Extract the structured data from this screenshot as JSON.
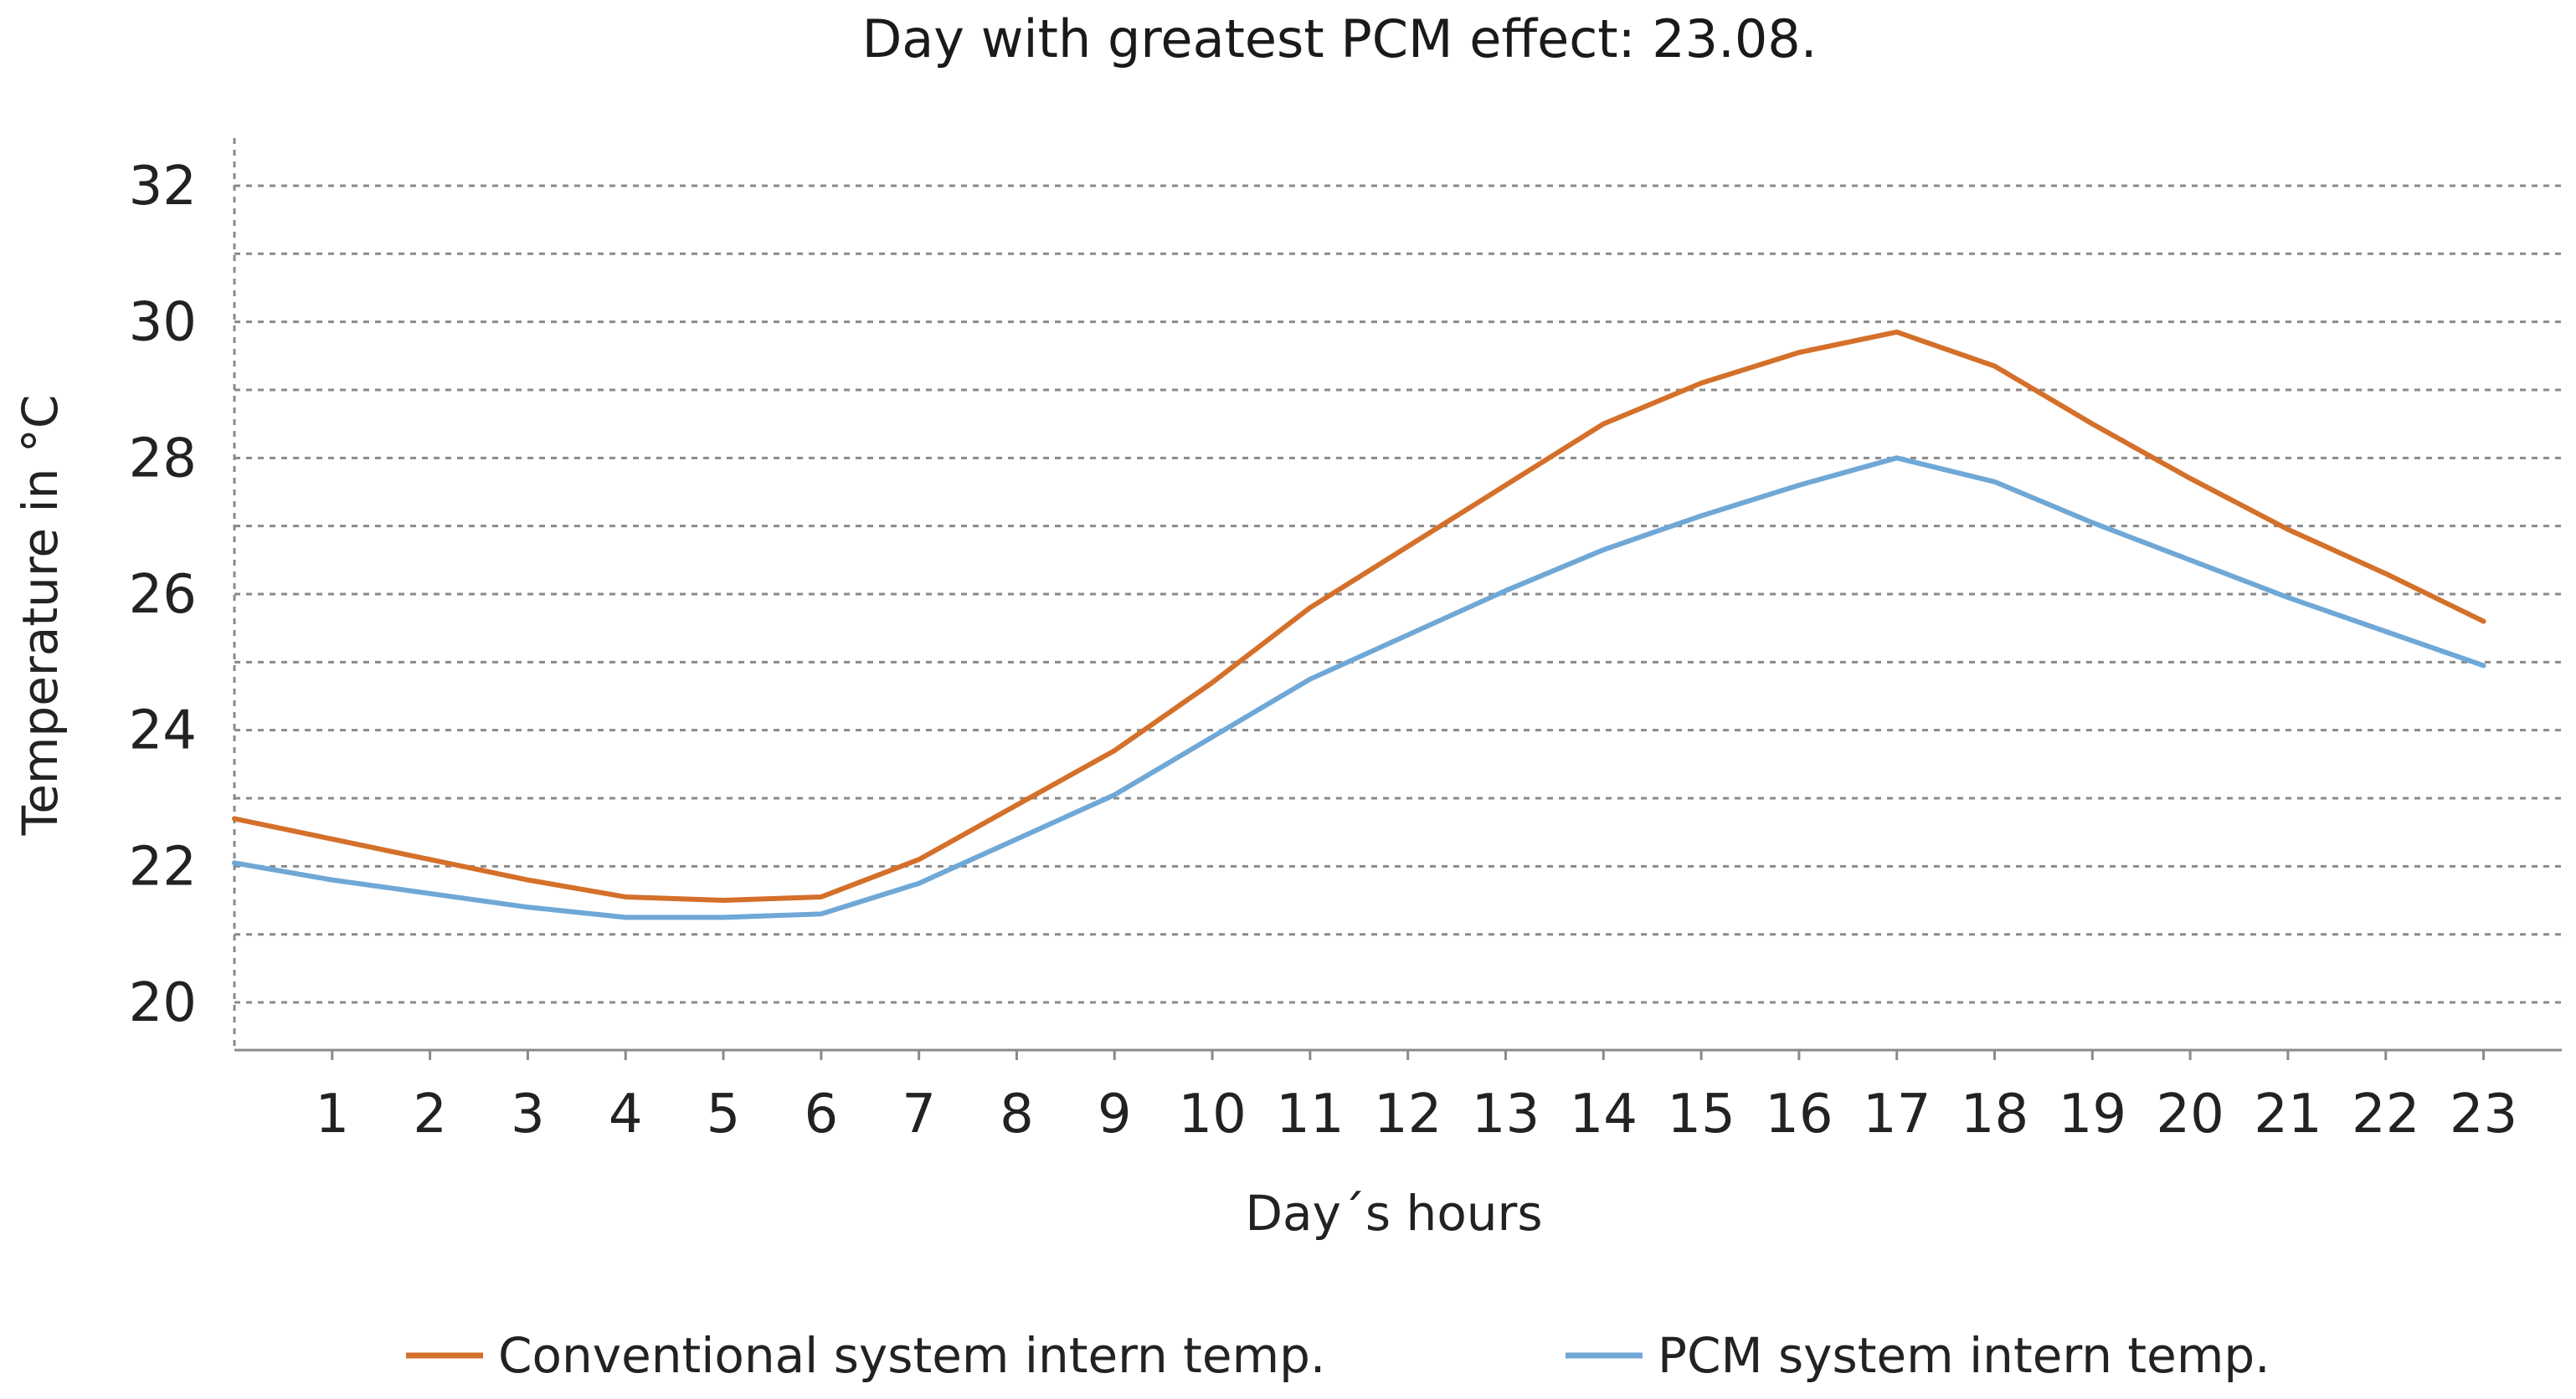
{
  "chart_data": {
    "type": "line",
    "title": "Day with greatest PCM effect: 23.08.",
    "xlabel": "Day´s hours",
    "ylabel": "Temperature in °C",
    "x": [
      0,
      1,
      2,
      3,
      4,
      5,
      6,
      7,
      8,
      9,
      10,
      11,
      12,
      13,
      14,
      15,
      16,
      17,
      18,
      19,
      20,
      21,
      22,
      23
    ],
    "x_tick_labels": [
      "1",
      "2",
      "3",
      "4",
      "5",
      "6",
      "7",
      "8",
      "9",
      "10",
      "11",
      "12",
      "13",
      "14",
      "15",
      "16",
      "17",
      "18",
      "19",
      "20",
      "21",
      "22",
      "23"
    ],
    "y_tick_labels": [
      "20",
      "22",
      "24",
      "26",
      "28",
      "30",
      "32"
    ],
    "xlim": [
      0,
      23.8
    ],
    "ylim": [
      19.3,
      32.7
    ],
    "grid": true,
    "legend_position": "bottom",
    "series": [
      {
        "name": "Conventional system intern temp.",
        "color": "#D4702A",
        "values": [
          22.7,
          22.4,
          22.1,
          21.8,
          21.55,
          21.5,
          21.55,
          22.1,
          22.9,
          23.7,
          24.7,
          25.8,
          26.7,
          27.6,
          28.5,
          29.1,
          29.55,
          29.85,
          29.35,
          28.5,
          27.7,
          26.95,
          26.3,
          25.6
        ]
      },
      {
        "name": "PCM system intern temp.",
        "color": "#6FA8D6",
        "values": [
          22.05,
          21.8,
          21.6,
          21.4,
          21.25,
          21.25,
          21.3,
          21.75,
          22.4,
          23.05,
          23.9,
          24.75,
          25.4,
          26.05,
          26.65,
          27.15,
          27.6,
          28.0,
          27.65,
          27.05,
          26.5,
          25.95,
          25.45,
          24.95
        ]
      }
    ]
  }
}
